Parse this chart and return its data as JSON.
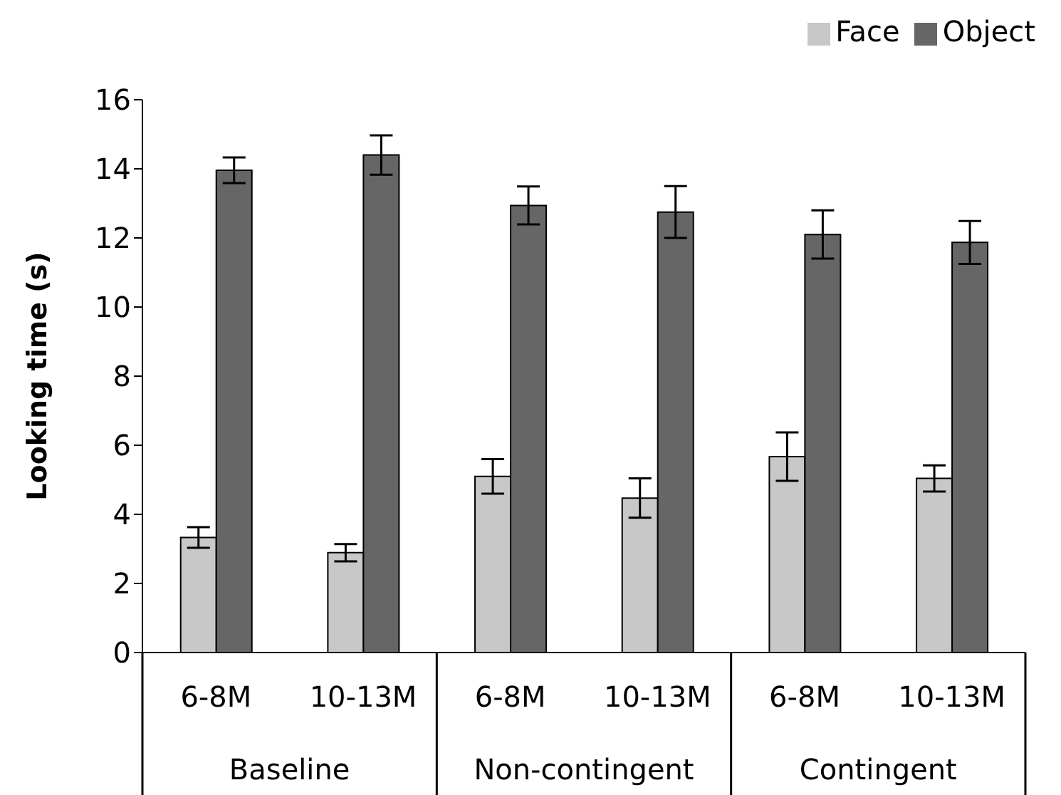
{
  "chart_data": {
    "type": "bar",
    "ylabel": "Looking time (s)",
    "categories": [
      "6-8M",
      "10-13M",
      "6-8M",
      "10-13M",
      "6-8M",
      "10-13M"
    ],
    "annotations": [
      "Baseline",
      "Non-contingent",
      "Contingent"
    ],
    "series": [
      {
        "name": "Face",
        "color": "#c8c8c8",
        "values": [
          3.33,
          2.89,
          5.1,
          4.47,
          5.67,
          5.04
        ],
        "errors": [
          0.3,
          0.25,
          0.5,
          0.57,
          0.7,
          0.38
        ]
      },
      {
        "name": "Object",
        "color": "#666666",
        "values": [
          13.96,
          14.4,
          12.94,
          12.75,
          12.1,
          11.87
        ],
        "errors": [
          0.37,
          0.57,
          0.55,
          0.75,
          0.7,
          0.62
        ]
      }
    ],
    "ylim": [
      0,
      16
    ],
    "yticks": [
      0,
      2,
      4,
      6,
      8,
      10,
      12,
      14,
      16
    ],
    "grid": false,
    "legend": "top right"
  }
}
